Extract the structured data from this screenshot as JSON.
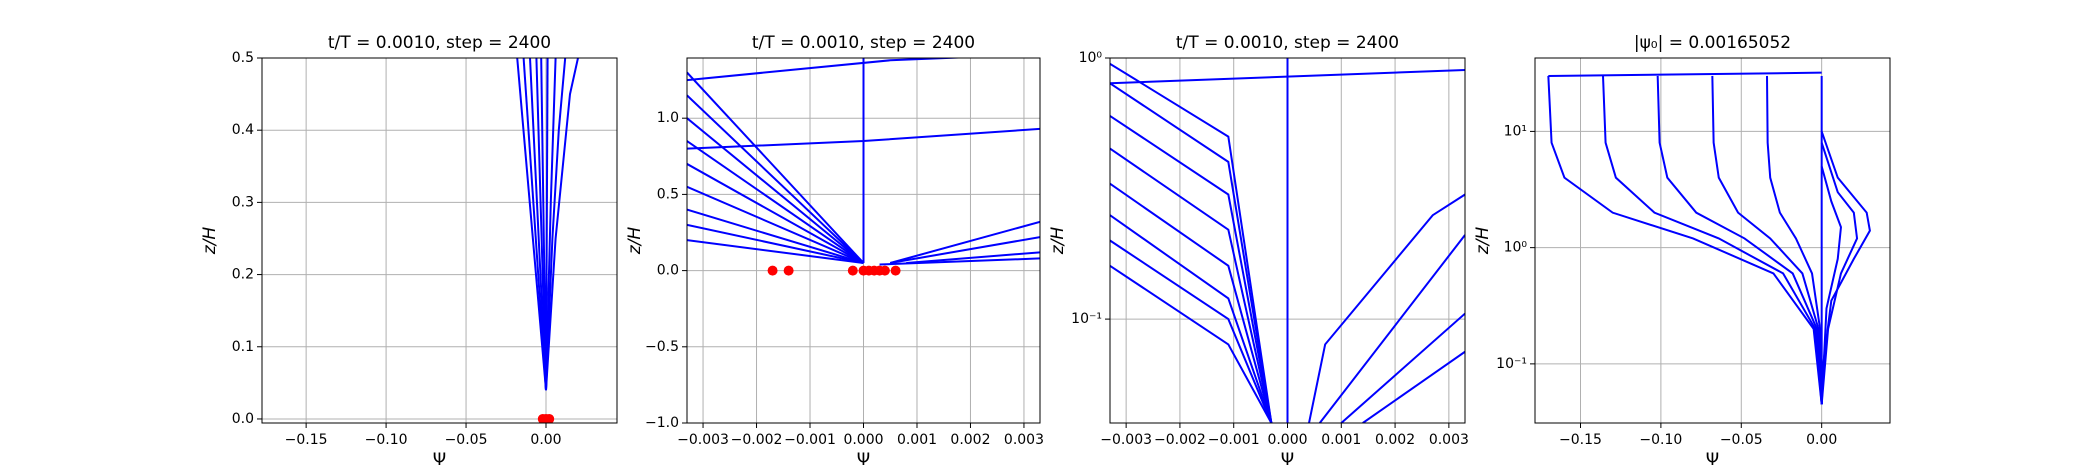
{
  "chart_data": [
    {
      "type": "line",
      "title": "t/T = 0.0010, step = 2400",
      "xlabel": "Ψ",
      "ylabel": "z/H",
      "xlim": [
        -0.1776,
        0.0444
      ],
      "ylim": [
        -0.0056,
        0.5
      ],
      "ylog": false,
      "grid": true,
      "xticks": [
        {
          "value": -0.15,
          "label": "−0.15"
        },
        {
          "value": -0.1,
          "label": "−0.10"
        },
        {
          "value": -0.05,
          "label": "−0.05"
        },
        {
          "value": 0,
          "label": "0.00"
        }
      ],
      "yticks": [
        {
          "value": 0,
          "label": "0.0"
        },
        {
          "value": 0.1,
          "label": "0.1"
        },
        {
          "value": 0.2,
          "label": "0.2"
        },
        {
          "value": 0.3,
          "label": "0.3"
        },
        {
          "value": 0.4,
          "label": "0.4"
        },
        {
          "value": 0.5,
          "label": "0.5"
        }
      ],
      "series": [
        {
          "color": "#0000ff",
          "x": [
            0,
            -0.018
          ],
          "values": [
            0.04,
            0.5
          ]
        },
        {
          "color": "#0000ff",
          "x": [
            0,
            -0.014
          ],
          "values": [
            0.04,
            0.5
          ]
        },
        {
          "color": "#0000ff",
          "x": [
            0,
            -0.01
          ],
          "values": [
            0.04,
            0.5
          ]
        },
        {
          "color": "#0000ff",
          "x": [
            0,
            -0.006
          ],
          "values": [
            0.04,
            0.5
          ]
        },
        {
          "color": "#0000ff",
          "x": [
            0,
            -0.003
          ],
          "values": [
            0.04,
            0.5
          ]
        },
        {
          "color": "#0000ff",
          "x": [
            0,
            0.001
          ],
          "values": [
            0.04,
            0.5
          ]
        },
        {
          "color": "#0000ff",
          "x": [
            0,
            0.004,
            0.008,
            0.012
          ],
          "values": [
            0.04,
            0.25,
            0.4,
            0.5
          ]
        },
        {
          "color": "#0000ff",
          "x": [
            0,
            0.006,
            0.015,
            0.02
          ],
          "values": [
            0.04,
            0.25,
            0.45,
            0.5
          ]
        },
        {
          "color": "#0000ff",
          "x": [
            0,
            0.003,
            0.006
          ],
          "values": [
            0.04,
            0.3,
            0.5
          ]
        },
        {
          "color": "#ff0000",
          "marker": "o",
          "x": [
            -0.002,
            0,
            0.002
          ],
          "values": [
            0,
            0,
            0
          ]
        }
      ]
    },
    {
      "type": "line",
      "title": "t/T = 0.0010, step = 2400",
      "xlabel": "Ψ",
      "ylabel": "z/H",
      "xlim": [
        -0.0033,
        0.0033
      ],
      "ylim": [
        -1.0,
        1.395
      ],
      "ylog": false,
      "grid": true,
      "xticks": [
        {
          "value": -0.003,
          "label": "−0.003"
        },
        {
          "value": -0.002,
          "label": "−0.002"
        },
        {
          "value": -0.001,
          "label": "−0.001"
        },
        {
          "value": 0,
          "label": "0.000"
        },
        {
          "value": 0.001,
          "label": "0.001"
        },
        {
          "value": 0.002,
          "label": "0.002"
        },
        {
          "value": 0.003,
          "label": "0.003"
        }
      ],
      "yticks": [
        {
          "value": -1,
          "label": "−1.0"
        },
        {
          "value": -0.5,
          "label": "−0.5"
        },
        {
          "value": 0,
          "label": "0.0"
        },
        {
          "value": 0.5,
          "label": "0.5"
        },
        {
          "value": 1,
          "label": "1.0"
        }
      ],
      "series": [
        {
          "color": "#0000ff",
          "x": [
            0,
            -0.0033
          ],
          "values": [
            0.05,
            0.2
          ]
        },
        {
          "color": "#0000ff",
          "x": [
            0,
            -0.0033
          ],
          "values": [
            0.05,
            0.3
          ]
        },
        {
          "color": "#0000ff",
          "x": [
            0,
            -0.0033
          ],
          "values": [
            0.05,
            0.4
          ]
        },
        {
          "color": "#0000ff",
          "x": [
            0,
            -0.0033
          ],
          "values": [
            0.05,
            0.55
          ]
        },
        {
          "color": "#0000ff",
          "x": [
            0,
            -0.0033
          ],
          "values": [
            0.05,
            0.7
          ]
        },
        {
          "color": "#0000ff",
          "x": [
            0,
            -0.0033
          ],
          "values": [
            0.05,
            0.85
          ]
        },
        {
          "color": "#0000ff",
          "x": [
            0,
            -0.0033
          ],
          "values": [
            0.05,
            1.0
          ]
        },
        {
          "color": "#0000ff",
          "x": [
            0,
            -0.0033
          ],
          "values": [
            0.05,
            1.15
          ]
        },
        {
          "color": "#0000ff",
          "x": [
            0,
            -0.0033
          ],
          "values": [
            0.05,
            1.3
          ]
        },
        {
          "color": "#0000ff",
          "x": [
            0,
            0
          ],
          "values": [
            0.05,
            1.4
          ]
        },
        {
          "color": "#0000ff",
          "x": [
            -0.0033,
            0,
            0.0033
          ],
          "values": [
            0.8,
            0.85,
            0.93
          ]
        },
        {
          "color": "#0000ff",
          "x": [
            -0.0033,
            0.0005,
            0.0033
          ],
          "values": [
            1.25,
            1.38,
            1.42
          ]
        },
        {
          "color": "#0000ff",
          "x": [
            0.0005,
            0.0033
          ],
          "values": [
            0.05,
            0.32
          ]
        },
        {
          "color": "#0000ff",
          "x": [
            0.0005,
            0.0033
          ],
          "values": [
            0.05,
            0.22
          ]
        },
        {
          "color": "#0000ff",
          "x": [
            0.0008,
            0.0033
          ],
          "values": [
            0.05,
            0.12
          ]
        },
        {
          "color": "#0000ff",
          "x": [
            0.0003,
            0.0033
          ],
          "values": [
            0.04,
            0.08
          ]
        },
        {
          "color": "#ff0000",
          "marker": "o",
          "x": [
            -0.0017,
            -0.0014,
            -0.0002,
            0,
            0.0001,
            0.0002,
            0.0003,
            0.0004,
            0.0006
          ],
          "values": [
            0,
            0,
            0,
            0,
            0,
            0,
            0,
            0,
            0
          ]
        }
      ]
    },
    {
      "type": "line",
      "title": "t/T = 0.0010, step = 2400",
      "xlabel": "Ψ",
      "ylabel": "z/H",
      "xlim": [
        -0.0033,
        0.0033
      ],
      "ylim": [
        0.04,
        1
      ],
      "ylog": true,
      "grid": true,
      "xticks": [
        {
          "value": -0.003,
          "label": "−0.003"
        },
        {
          "value": -0.002,
          "label": "−0.002"
        },
        {
          "value": -0.001,
          "label": "−0.001"
        },
        {
          "value": 0,
          "label": "0.000"
        },
        {
          "value": 0.001,
          "label": "0.001"
        },
        {
          "value": 0.002,
          "label": "0.002"
        },
        {
          "value": 0.003,
          "label": "0.003"
        }
      ],
      "yticks": [
        {
          "value": 0.1,
          "label": "10⁻¹"
        },
        {
          "value": 1,
          "label": "10⁰"
        }
      ],
      "series": [
        {
          "color": "#0000ff",
          "x": [
            -0.0033,
            -0.0011,
            -0.0003
          ],
          "values": [
            0.16,
            0.08,
            0.04
          ]
        },
        {
          "color": "#0000ff",
          "x": [
            -0.0033,
            -0.0011,
            -0.0003
          ],
          "values": [
            0.2,
            0.1,
            0.04
          ]
        },
        {
          "color": "#0000ff",
          "x": [
            -0.0033,
            -0.0011,
            -0.0003
          ],
          "values": [
            0.25,
            0.12,
            0.04
          ]
        },
        {
          "color": "#0000ff",
          "x": [
            -0.0033,
            -0.0011,
            -0.0003
          ],
          "values": [
            0.33,
            0.16,
            0.04
          ]
        },
        {
          "color": "#0000ff",
          "x": [
            -0.0033,
            -0.0011,
            -0.0003
          ],
          "values": [
            0.45,
            0.22,
            0.04
          ]
        },
        {
          "color": "#0000ff",
          "x": [
            -0.0033,
            -0.0011,
            -0.0003
          ],
          "values": [
            0.6,
            0.3,
            0.04
          ]
        },
        {
          "color": "#0000ff",
          "x": [
            -0.0033,
            -0.0011,
            -0.0003
          ],
          "values": [
            0.8,
            0.4,
            0.04
          ]
        },
        {
          "color": "#0000ff",
          "x": [
            -0.0033,
            -0.0011,
            -0.0003
          ],
          "values": [
            0.95,
            0.5,
            0.04
          ]
        },
        {
          "color": "#0000ff",
          "x": [
            0,
            0
          ],
          "values": [
            0.04,
            1
          ]
        },
        {
          "color": "#0000ff",
          "x": [
            -0.0033,
            0.0033
          ],
          "values": [
            0.8,
            0.9
          ]
        },
        {
          "color": "#0000ff",
          "x": [
            0.0004,
            0.0007,
            0.0027,
            0.0033
          ],
          "values": [
            0.04,
            0.08,
            0.25,
            0.3
          ]
        },
        {
          "color": "#0000ff",
          "x": [
            0.0006,
            0.0033
          ],
          "values": [
            0.04,
            0.21
          ]
        },
        {
          "color": "#0000ff",
          "x": [
            0.001,
            0.0033
          ],
          "values": [
            0.04,
            0.105
          ]
        },
        {
          "color": "#0000ff",
          "x": [
            0.0014,
            0.0033
          ],
          "values": [
            0.04,
            0.075
          ]
        }
      ]
    },
    {
      "type": "line",
      "title": "|ψ₀| = 0.00165052",
      "xlabel": "Ψ",
      "ylabel": "z/H",
      "xlim": [
        -0.1783,
        0.0425
      ],
      "ylim": [
        0.031,
        42.8
      ],
      "ylog": true,
      "grid": true,
      "xticks": [
        {
          "value": -0.15,
          "label": "−0.15"
        },
        {
          "value": -0.1,
          "label": "−0.10"
        },
        {
          "value": -0.05,
          "label": "−0.05"
        },
        {
          "value": 0,
          "label": "0.00"
        }
      ],
      "yticks": [
        {
          "value": 0.1,
          "label": "10⁻¹"
        },
        {
          "value": 1,
          "label": "10⁰"
        },
        {
          "value": 10,
          "label": "10¹"
        }
      ],
      "series": [
        {
          "color": "#0000ff",
          "x": [
            -0.17,
            -0.168,
            -0.16,
            -0.13,
            -0.08,
            -0.03,
            -0.005,
            0
          ],
          "values": [
            30,
            8,
            4,
            2,
            1.2,
            0.6,
            0.2,
            0.045
          ]
        },
        {
          "color": "#0000ff",
          "x": [
            -0.136,
            -0.1344,
            -0.128,
            -0.104,
            -0.064,
            -0.024,
            -0.004,
            0
          ],
          "values": [
            30,
            8,
            4,
            2,
            1.2,
            0.6,
            0.2,
            0.045
          ]
        },
        {
          "color": "#0000ff",
          "x": [
            -0.102,
            -0.1008,
            -0.096,
            -0.078,
            -0.048,
            -0.018,
            -0.003,
            0
          ],
          "values": [
            30,
            8,
            4,
            2,
            1.2,
            0.6,
            0.2,
            0.045
          ]
        },
        {
          "color": "#0000ff",
          "x": [
            -0.068,
            -0.0672,
            -0.064,
            -0.052,
            -0.032,
            -0.012,
            -0.002,
            0
          ],
          "values": [
            30,
            8,
            4,
            2,
            1.2,
            0.6,
            0.2,
            0.045
          ]
        },
        {
          "color": "#0000ff",
          "x": [
            -0.034,
            -0.0336,
            -0.032,
            -0.026,
            -0.016,
            -0.006,
            -0.001,
            0
          ],
          "values": [
            30,
            8,
            4,
            2,
            1.2,
            0.6,
            0.2,
            0.045
          ]
        },
        {
          "color": "#0000ff",
          "x": [
            -0.17,
            0
          ],
          "values": [
            30,
            32
          ]
        },
        {
          "color": "#0000ff",
          "x": [
            0,
            0
          ],
          "values": [
            0.045,
            30
          ]
        },
        {
          "color": "#0000ff",
          "x": [
            0,
            0.01,
            0.028,
            0.03,
            0.02,
            0.006,
            0.001,
            0
          ],
          "values": [
            10,
            4,
            2,
            1.4,
            0.8,
            0.35,
            0.1,
            0.045
          ]
        },
        {
          "color": "#0000ff",
          "x": [
            0,
            0.01,
            0.02,
            0.022,
            0.012,
            0.004,
            0
          ],
          "values": [
            8,
            3,
            2,
            1.2,
            0.6,
            0.2,
            0.045
          ]
        },
        {
          "color": "#0000ff",
          "x": [
            0,
            0.006,
            0.012,
            0.01,
            0.003,
            0
          ],
          "values": [
            5,
            2.5,
            1.5,
            0.8,
            0.3,
            0.045
          ]
        }
      ]
    }
  ]
}
